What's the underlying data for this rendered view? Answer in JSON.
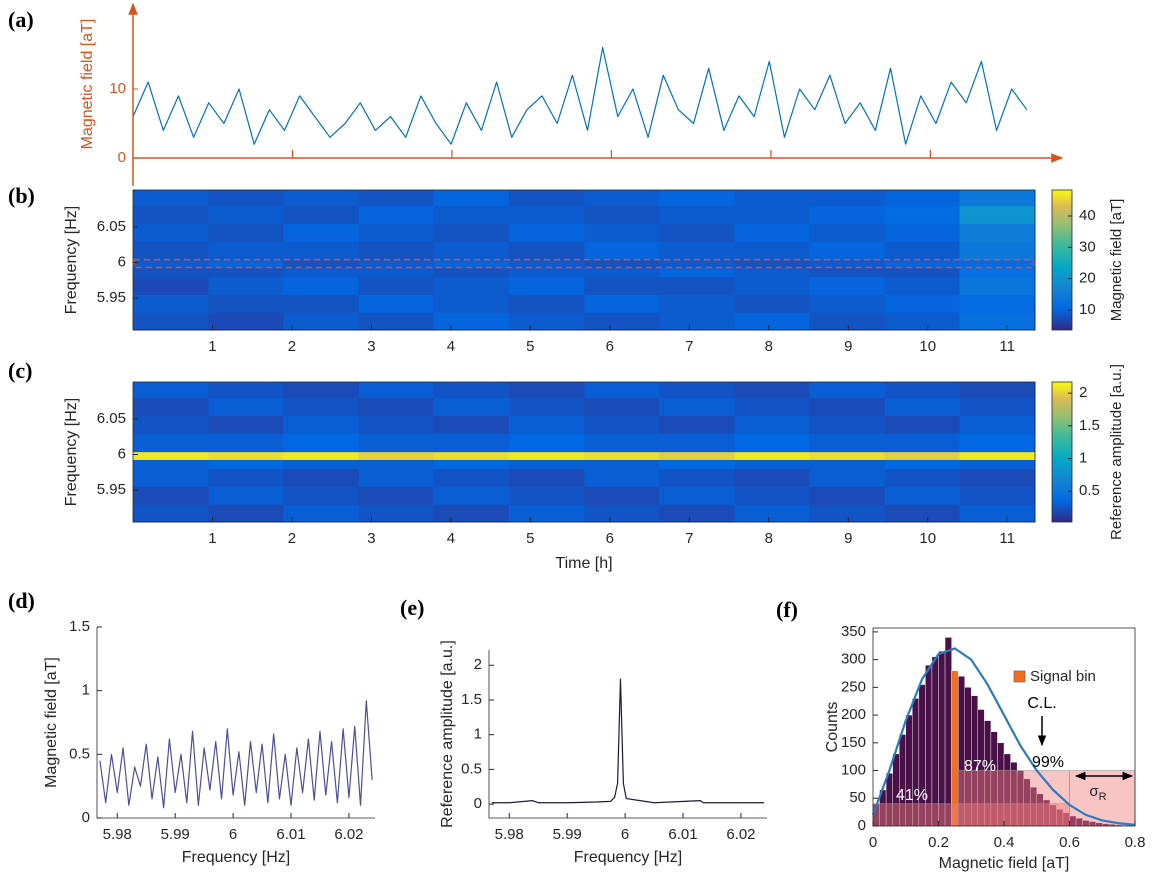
{
  "chart_data": [
    {
      "type": "line",
      "panel": "(a)",
      "ylabel": "Magnetic field [aT]",
      "axis_color": "#d95319",
      "arrows": true,
      "color": "#0072bd",
      "xlim": [
        0,
        11.35
      ],
      "ylim": [
        0,
        21.45
      ],
      "yticks": [
        0,
        10
      ],
      "xtick_marks": [
        2,
        4,
        6,
        8,
        10
      ],
      "x": [
        0,
        0.19,
        0.38,
        0.57,
        0.76,
        0.95,
        1.14,
        1.33,
        1.52,
        1.71,
        1.9,
        2.09,
        2.28,
        2.47,
        2.66,
        2.85,
        3.04,
        3.23,
        3.42,
        3.61,
        3.8,
        3.99,
        4.18,
        4.37,
        4.56,
        4.75,
        4.94,
        5.13,
        5.32,
        5.51,
        5.7,
        5.89,
        6.08,
        6.27,
        6.46,
        6.65,
        6.84,
        7.03,
        7.22,
        7.41,
        7.6,
        7.79,
        7.98,
        8.17,
        8.36,
        8.55,
        8.74,
        8.93,
        9.12,
        9.31,
        9.5,
        9.69,
        9.88,
        10.07,
        10.26,
        10.45,
        10.64,
        10.83,
        11.02,
        11.21
      ],
      "values": [
        6,
        11,
        4,
        9,
        3,
        8,
        5,
        10,
        2,
        7,
        4,
        9,
        6,
        3,
        5,
        8,
        4,
        6,
        3,
        9,
        5,
        2,
        8,
        4,
        11,
        3,
        7,
        9,
        5,
        12,
        4,
        16,
        6,
        10,
        3,
        12,
        7,
        5,
        13,
        4,
        9,
        6,
        14,
        3,
        10,
        7,
        12,
        5,
        8,
        4,
        13,
        2,
        9,
        5,
        11,
        8,
        14,
        4,
        10,
        7
      ]
    },
    {
      "type": "heatmap",
      "panel": "(b)",
      "ylabel": "Frequency [Hz]",
      "colorbar_label": "Magnetic field [aT]",
      "box": true,
      "xlim": [
        0,
        11.35
      ],
      "ylim": [
        5.905,
        6.102
      ],
      "xticks": [
        1,
        2,
        3,
        4,
        5,
        6,
        7,
        8,
        9,
        10,
        11
      ],
      "yticks": [
        5.95,
        6,
        6.05
      ],
      "clim": [
        3.6,
        48.3
      ],
      "cticks": [
        10,
        20,
        30,
        40
      ],
      "highlight_band": [
        5.993,
        6.004
      ],
      "highlight_color": "#e8473b",
      "xbins": [
        0,
        0.95,
        1.89,
        2.84,
        3.78,
        4.73,
        5.68,
        6.62,
        7.57,
        8.51,
        9.46,
        10.4,
        11.35
      ],
      "ybins": [
        5.905,
        5.93,
        5.955,
        5.98,
        5.993,
        6.004,
        6.03,
        6.055,
        6.08,
        6.102
      ],
      "z": [
        [
          8,
          7,
          9,
          8,
          10,
          9,
          8,
          9,
          10,
          8,
          9,
          12
        ],
        [
          9,
          8,
          8,
          10,
          9,
          8,
          10,
          9,
          8,
          9,
          10,
          11
        ],
        [
          7,
          9,
          10,
          8,
          9,
          10,
          8,
          8,
          9,
          10,
          9,
          13
        ],
        [
          8,
          8,
          9,
          9,
          8,
          9,
          9,
          10,
          9,
          8,
          8,
          12
        ],
        [
          9,
          10,
          8,
          9,
          10,
          9,
          8,
          9,
          8,
          9,
          10,
          11
        ],
        [
          8,
          9,
          9,
          8,
          9,
          8,
          10,
          9,
          9,
          10,
          9,
          14
        ],
        [
          9,
          8,
          10,
          9,
          8,
          10,
          9,
          8,
          10,
          9,
          10,
          15
        ],
        [
          8,
          9,
          8,
          10,
          9,
          9,
          8,
          9,
          9,
          10,
          11,
          20
        ],
        [
          9,
          8,
          9,
          8,
          10,
          8,
          9,
          10,
          9,
          9,
          10,
          14
        ]
      ]
    },
    {
      "type": "heatmap",
      "panel": "(c)",
      "ylabel": "Frequency [Hz]",
      "xlabel": "Time [h]",
      "colorbar_label": "Reference amplitude [a.u.]",
      "box": true,
      "xlim": [
        0,
        11.35
      ],
      "ylim": [
        5.905,
        6.102
      ],
      "xticks": [
        1,
        2,
        3,
        4,
        5,
        6,
        7,
        8,
        9,
        10,
        11
      ],
      "yticks": [
        5.95,
        6,
        6.05
      ],
      "clim": [
        0.03,
        2.17
      ],
      "cticks": [
        0.5,
        1,
        1.5,
        2
      ],
      "xbins": [
        0,
        0.95,
        1.89,
        2.84,
        3.78,
        4.73,
        5.68,
        6.62,
        7.57,
        8.51,
        9.46,
        10.4,
        11.35
      ],
      "ybins": [
        5.905,
        5.93,
        5.955,
        5.98,
        5.993,
        6.004,
        6.03,
        6.055,
        6.08,
        6.102
      ],
      "z": [
        [
          0.25,
          0.2,
          0.3,
          0.25,
          0.2,
          0.3,
          0.25,
          0.2,
          0.3,
          0.25,
          0.2,
          0.3
        ],
        [
          0.2,
          0.3,
          0.25,
          0.2,
          0.3,
          0.25,
          0.2,
          0.3,
          0.25,
          0.2,
          0.3,
          0.25
        ],
        [
          0.3,
          0.25,
          0.2,
          0.3,
          0.25,
          0.2,
          0.3,
          0.25,
          0.2,
          0.3,
          0.25,
          0.2
        ],
        [
          0.3,
          0.35,
          0.3,
          0.3,
          0.35,
          0.3,
          0.3,
          0.35,
          0.3,
          0.3,
          0.35,
          0.3
        ],
        [
          2.1,
          2.05,
          2.1,
          2.0,
          2.05,
          2.1,
          2.05,
          2.0,
          2.1,
          2.05,
          2.0,
          2.1
        ],
        [
          0.3,
          0.3,
          0.35,
          0.3,
          0.3,
          0.35,
          0.3,
          0.3,
          0.35,
          0.3,
          0.3,
          0.35
        ],
        [
          0.25,
          0.2,
          0.3,
          0.25,
          0.2,
          0.3,
          0.25,
          0.2,
          0.3,
          0.25,
          0.2,
          0.3
        ],
        [
          0.2,
          0.3,
          0.25,
          0.2,
          0.3,
          0.25,
          0.2,
          0.3,
          0.25,
          0.2,
          0.3,
          0.25
        ],
        [
          0.3,
          0.25,
          0.2,
          0.3,
          0.25,
          0.2,
          0.3,
          0.25,
          0.2,
          0.3,
          0.25,
          0.2
        ]
      ]
    },
    {
      "type": "line",
      "panel": "(d)",
      "ylabel": "Magnetic field [aT]",
      "xlabel": "Frequency [Hz]",
      "color": "#4c4f9a",
      "xlim": [
        5.9765,
        6.0245
      ],
      "ylim": [
        0,
        1.5
      ],
      "xticks": [
        5.98,
        5.99,
        6,
        6.01,
        6.02
      ],
      "yticks": [
        0,
        0.5,
        1,
        1.5
      ],
      "x": [
        5.977,
        5.978,
        5.979,
        5.98,
        5.981,
        5.982,
        5.983,
        5.984,
        5.985,
        5.986,
        5.987,
        5.988,
        5.989,
        5.99,
        5.991,
        5.992,
        5.993,
        5.994,
        5.995,
        5.996,
        5.997,
        5.998,
        5.999,
        6,
        6.001,
        6.002,
        6.003,
        6.004,
        6.005,
        6.006,
        6.007,
        6.008,
        6.009,
        6.01,
        6.011,
        6.012,
        6.013,
        6.014,
        6.015,
        6.016,
        6.017,
        6.018,
        6.019,
        6.02,
        6.021,
        6.022,
        6.023,
        6.024
      ],
      "values": [
        0.45,
        0.12,
        0.5,
        0.2,
        0.55,
        0.1,
        0.4,
        0.25,
        0.58,
        0.15,
        0.48,
        0.08,
        0.62,
        0.2,
        0.5,
        0.12,
        0.68,
        0.1,
        0.55,
        0.22,
        0.6,
        0.15,
        0.7,
        0.18,
        0.52,
        0.1,
        0.6,
        0.2,
        0.58,
        0.12,
        0.66,
        0.15,
        0.5,
        0.1,
        0.55,
        0.2,
        0.62,
        0.14,
        0.68,
        0.18,
        0.6,
        0.12,
        0.7,
        0.16,
        0.72,
        0.1,
        0.92,
        0.3
      ]
    },
    {
      "type": "line",
      "panel": "(e)",
      "ylabel": "Reference amplitude [a.u.]",
      "xlabel": "Frequency [Hz]",
      "color": "#1a1a3a",
      "xlim": [
        5.9765,
        6.0245
      ],
      "ylim": [
        -0.2,
        2.22
      ],
      "xticks": [
        5.98,
        5.99,
        6,
        6.01,
        6.02
      ],
      "yticks": [
        0,
        0.5,
        1,
        1.5,
        2
      ],
      "x": [
        5.977,
        5.98,
        5.984,
        5.985,
        5.99,
        5.995,
        5.9975,
        5.9982,
        5.9987,
        5.9992,
        5.9997,
        6.0002,
        6.005,
        6.013,
        6.0135,
        6.02,
        6.024
      ],
      "values": [
        0.02,
        0.02,
        0.05,
        0.02,
        0.02,
        0.03,
        0.04,
        0.1,
        0.3,
        1.8,
        0.3,
        0.08,
        0.02,
        0.05,
        0.02,
        0.02,
        0.02
      ]
    },
    {
      "type": "histogram",
      "panel": "(f)",
      "ylabel": "Counts",
      "xlabel": "Magnetic field [aT]",
      "color": "#4a1149",
      "box": true,
      "xlim": [
        0,
        0.8
      ],
      "ylim": [
        0,
        357
      ],
      "xticks": [
        0,
        0.2,
        0.4,
        0.6,
        0.8
      ],
      "yticks": [
        0,
        50,
        100,
        150,
        200,
        250,
        300,
        350
      ],
      "bins": [
        0,
        0.02,
        0.04,
        0.06,
        0.08,
        0.1,
        0.12,
        0.14,
        0.16,
        0.18,
        0.2,
        0.22,
        0.24,
        0.26,
        0.28,
        0.3,
        0.32,
        0.34,
        0.36,
        0.38,
        0.4,
        0.42,
        0.44,
        0.46,
        0.48,
        0.5,
        0.52,
        0.54,
        0.56,
        0.58,
        0.6,
        0.62,
        0.64,
        0.66,
        0.68,
        0.7,
        0.72,
        0.74,
        0.76,
        0.78,
        0.8
      ],
      "values": [
        40,
        65,
        95,
        130,
        165,
        200,
        230,
        255,
        290,
        305,
        315,
        340,
        280,
        270,
        250,
        235,
        210,
        190,
        170,
        150,
        130,
        115,
        100,
        85,
        70,
        58,
        47,
        38,
        30,
        24,
        18,
        14,
        10,
        8,
        6,
        4,
        3,
        2,
        1,
        1
      ],
      "highlight": {
        "name": "Signal bin",
        "color": "#f07020",
        "bins": [
          0.24,
          0.26
        ],
        "values": [
          280
        ]
      },
      "fit": {
        "color": "#2b7bbf",
        "x": [
          0,
          0.05,
          0.1,
          0.15,
          0.2,
          0.25,
          0.3,
          0.35,
          0.4,
          0.45,
          0.5,
          0.55,
          0.6,
          0.65,
          0.7,
          0.75,
          0.8
        ],
        "values": [
          20,
          100,
          190,
          265,
          310,
          320,
          300,
          255,
          200,
          145,
          100,
          65,
          38,
          20,
          10,
          5,
          2
        ]
      },
      "regions": [
        {
          "x": [
            0,
            0.6
          ],
          "y": 40
        },
        {
          "x": [
            0.26,
            0.6
          ],
          "y": 100
        },
        {
          "x": [
            0.6,
            0.8
          ],
          "y": 100
        }
      ],
      "region_color": "#f27c7c",
      "annotations": [
        "41%",
        "87%",
        "C.L.",
        "99%"
      ],
      "sigma": {
        "symbol": "σ",
        "subscript": "R"
      }
    }
  ]
}
